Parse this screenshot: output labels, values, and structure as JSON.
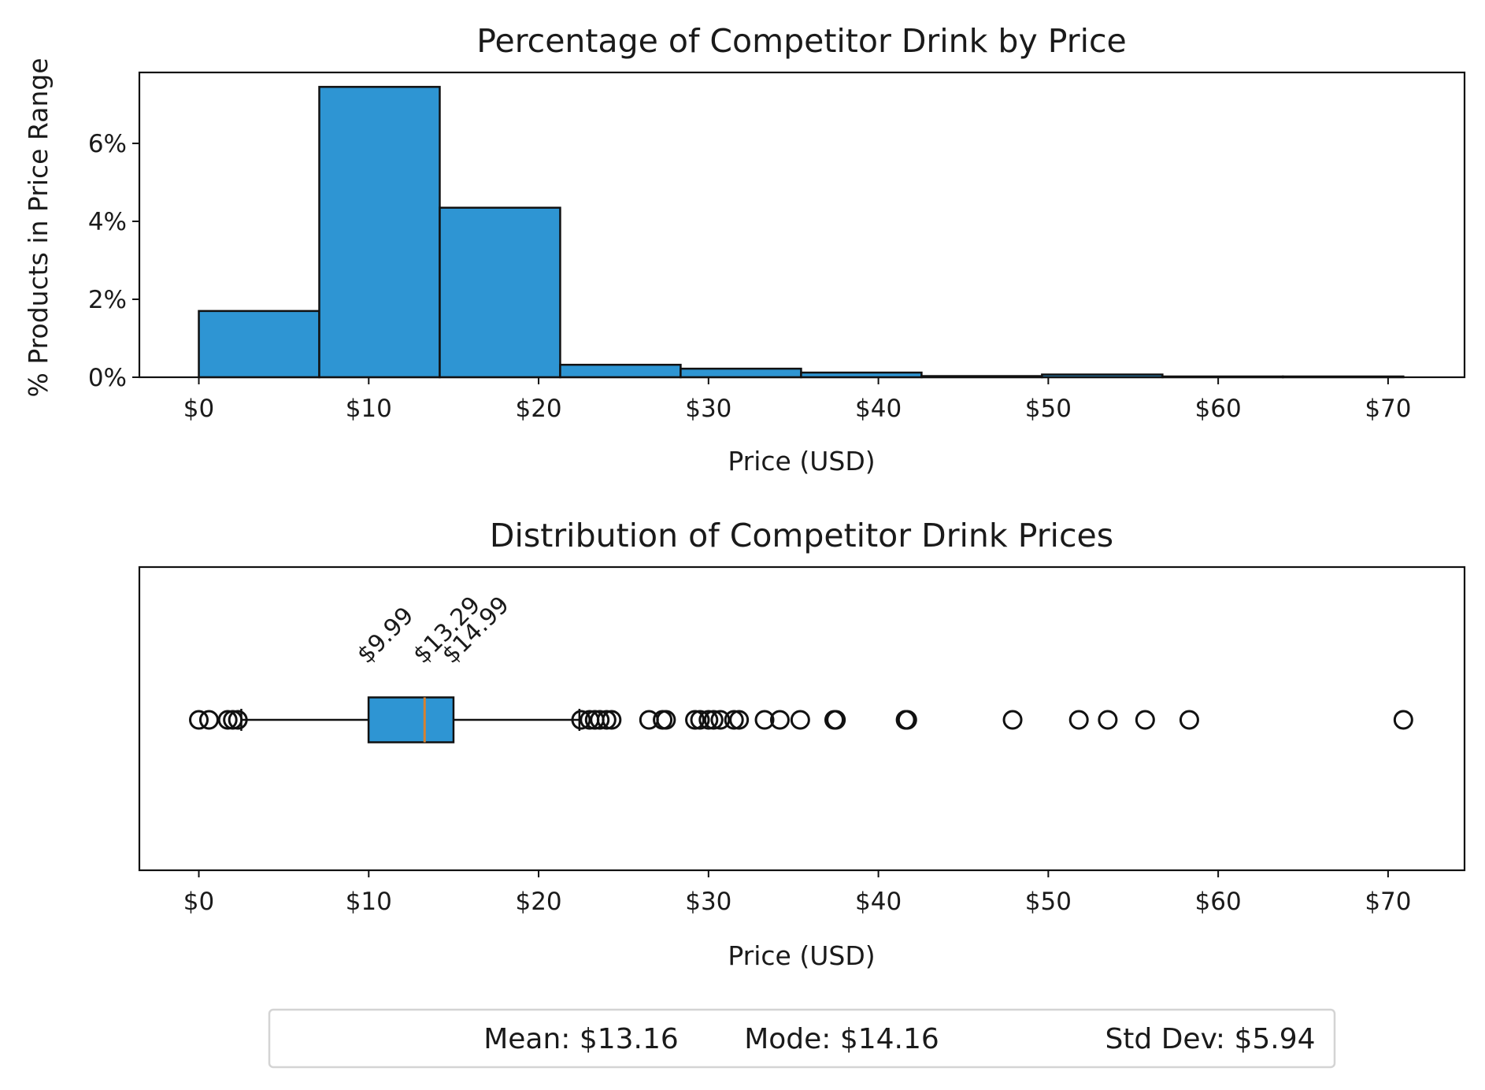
{
  "chart_data": [
    {
      "type": "bar",
      "title": "Percentage of Competitor Drink by Price",
      "xlabel": "Price (USD)",
      "ylabel": "% Products in Price Range",
      "bin_edges": [
        0,
        7.09,
        14.18,
        21.27,
        28.36,
        35.45,
        42.54,
        49.63,
        56.72,
        63.81,
        70.9
      ],
      "values": [
        1.7,
        7.45,
        4.35,
        0.32,
        0.22,
        0.12,
        0.03,
        0.07,
        0.02,
        0.02
      ],
      "xlim": [
        -3.5,
        74.5
      ],
      "ylim": [
        0,
        7.82
      ],
      "x_ticks": [
        0,
        10,
        20,
        30,
        40,
        50,
        60,
        70
      ],
      "x_tick_labels": [
        "$0",
        "$10",
        "$20",
        "$30",
        "$40",
        "$50",
        "$60",
        "$70"
      ],
      "y_ticks": [
        0,
        2,
        4,
        6
      ],
      "y_tick_labels": [
        "0%",
        "2%",
        "4%",
        "6%"
      ],
      "bar_color": "#2e95d3",
      "edge_color": "#111111"
    },
    {
      "type": "box",
      "title": "Distribution of Competitor Drink Prices",
      "xlabel": "Price (USD)",
      "xlim": [
        -3.5,
        74.5
      ],
      "x_ticks": [
        0,
        10,
        20,
        30,
        40,
        50,
        60,
        70
      ],
      "x_tick_labels": [
        "$0",
        "$10",
        "$20",
        "$30",
        "$40",
        "$50",
        "$60",
        "$70"
      ],
      "q1": 9.99,
      "median": 13.29,
      "q3": 14.99,
      "whisker_low": 2.5,
      "whisker_high": 22.4,
      "q1_label": "$9.99",
      "median_label": "$13.29",
      "q3_label": "$14.99",
      "outliers": [
        0.0,
        0.6,
        1.7,
        2.0,
        2.3,
        22.5,
        23.0,
        23.3,
        23.6,
        24.0,
        24.3,
        26.5,
        27.3,
        27.5,
        29.2,
        29.5,
        30.0,
        30.3,
        30.7,
        31.5,
        31.8,
        33.3,
        34.2,
        35.4,
        37.4,
        37.5,
        41.6,
        41.7,
        47.9,
        51.8,
        53.5,
        55.7,
        58.3,
        70.9
      ],
      "box_color": "#2e95d3",
      "median_color": "#d8812f"
    }
  ],
  "stats": {
    "mean": "Mean: $13.16",
    "mode": "Mode: $14.16",
    "std": "Std Dev: $5.94"
  }
}
